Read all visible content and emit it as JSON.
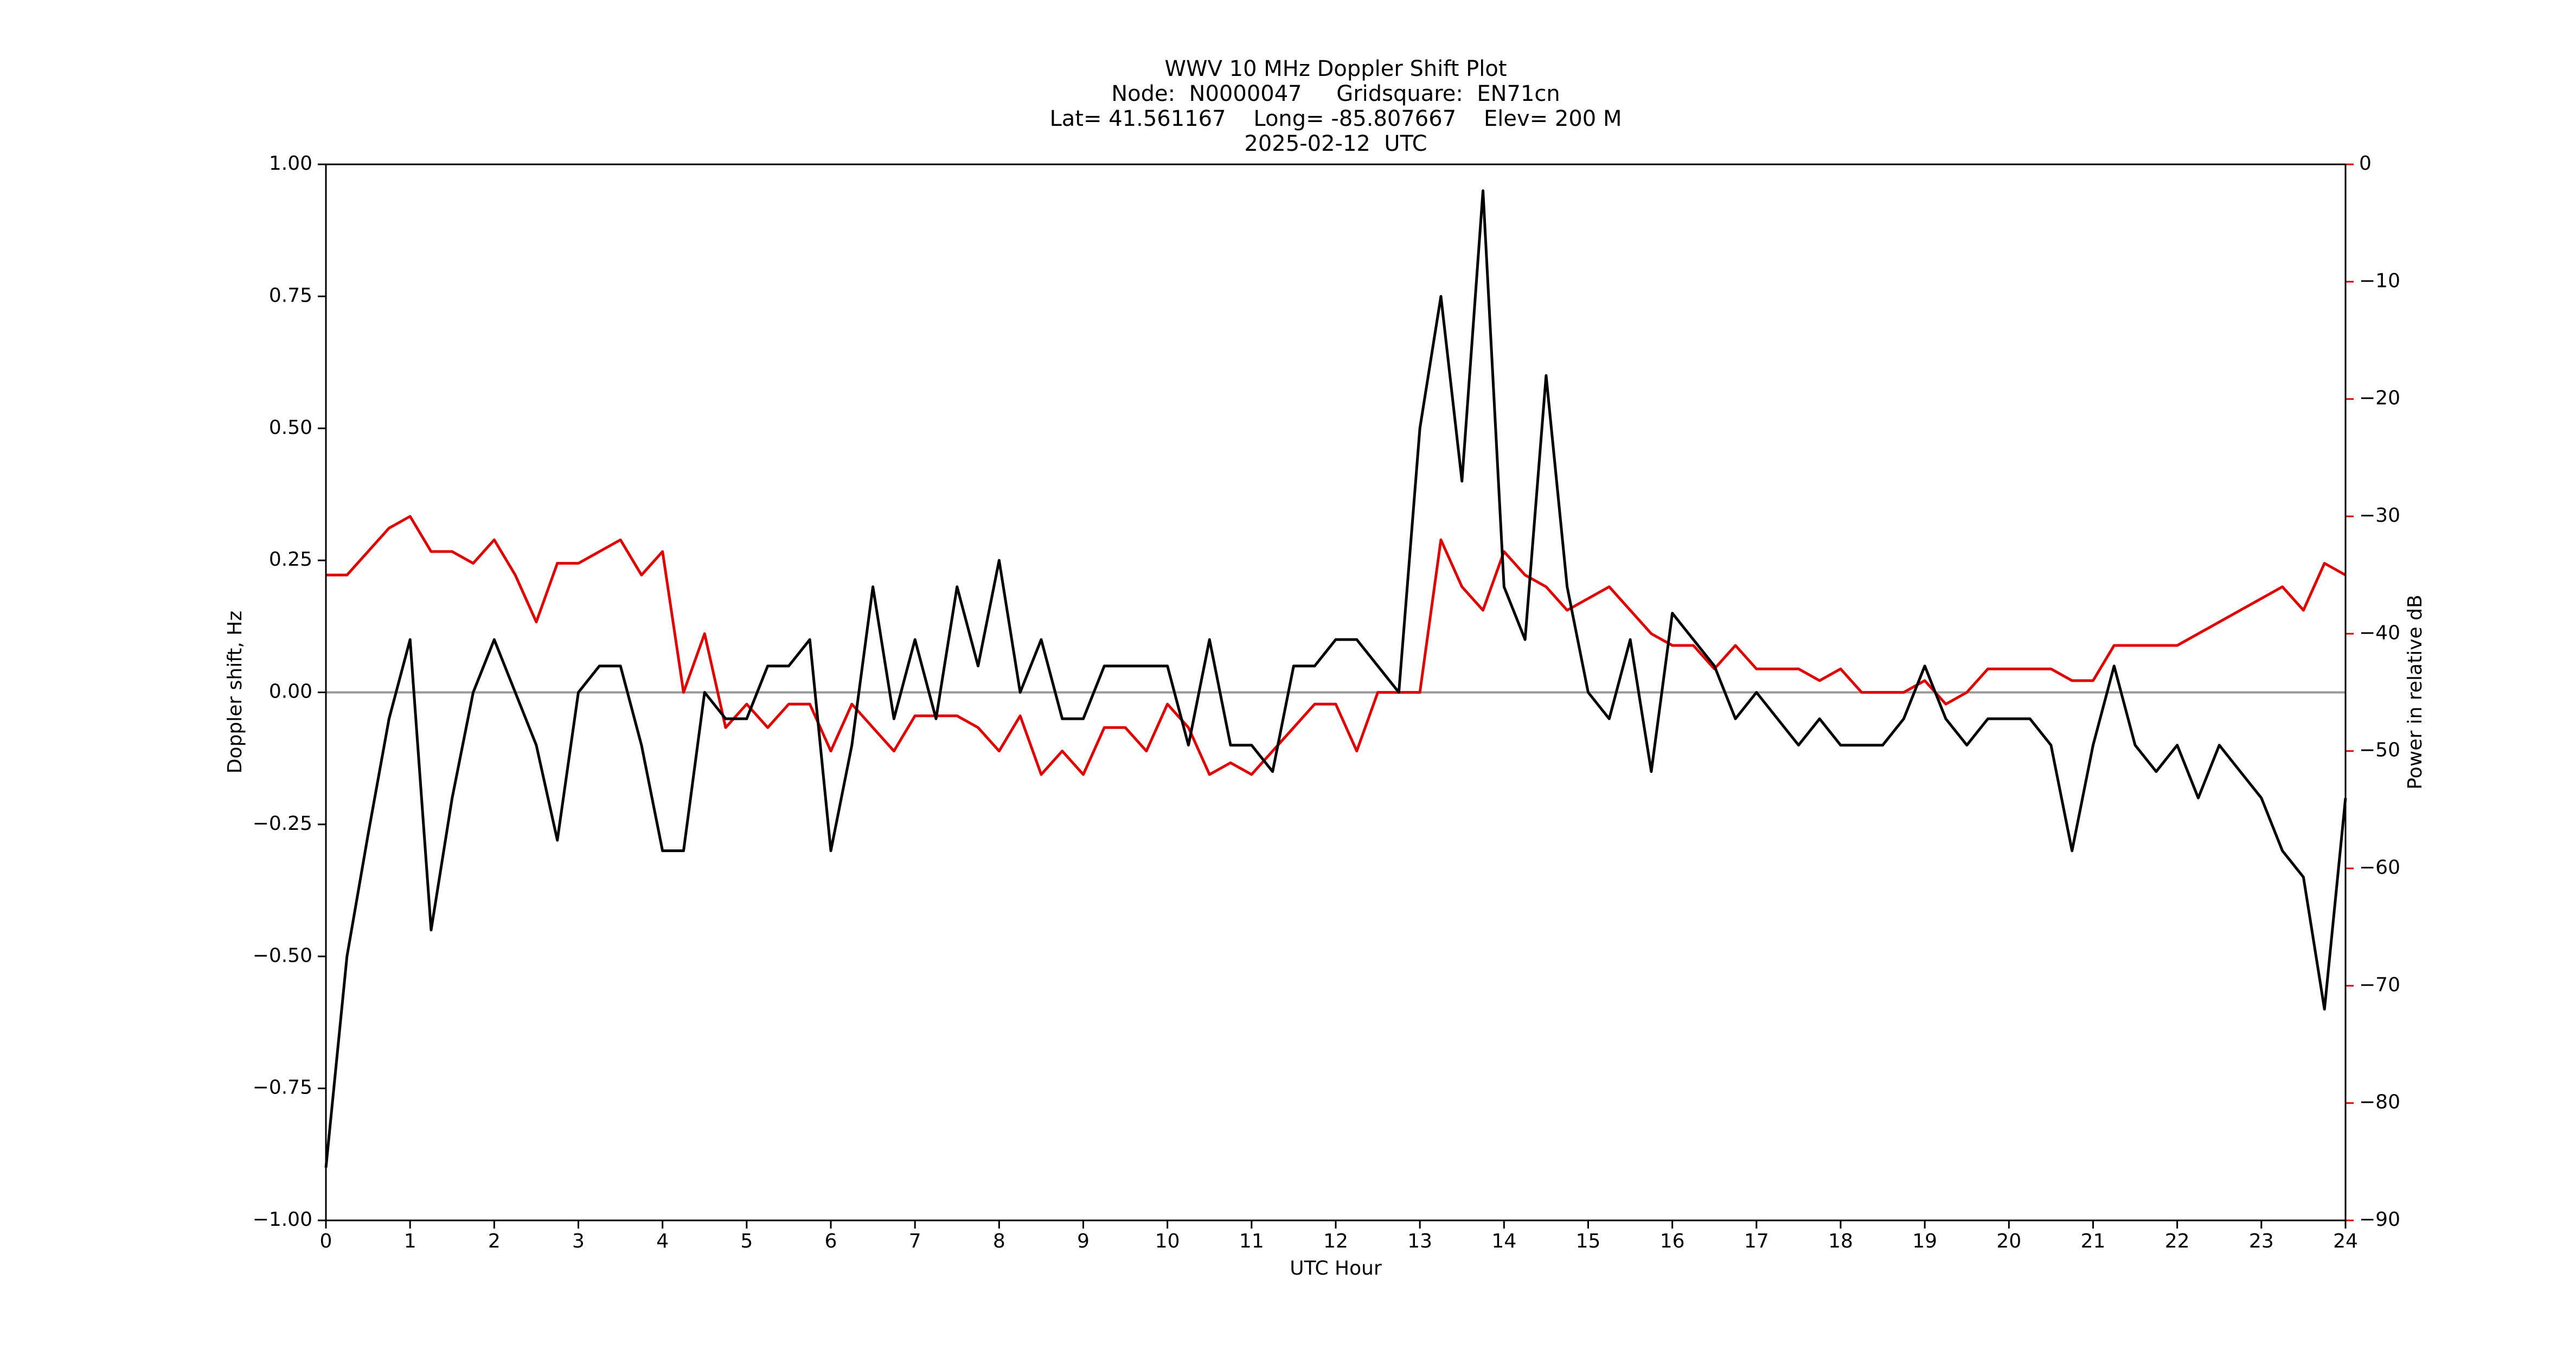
{
  "chart_data": {
    "type": "line",
    "title": "WWV 10 MHz Doppler Shift Plot",
    "subtitle": [
      "Node:  N0000047     Gridsquare:  EN71cn",
      "Lat= 41.561167    Long= -85.807667    Elev= 200 M",
      "2025-02-12  UTC"
    ],
    "xlabel": "UTC Hour",
    "ylabel": "Doppler shift, Hz",
    "y2label": "Power in relative dB",
    "xlim": [
      0,
      24
    ],
    "xticks": [
      0,
      1,
      2,
      3,
      4,
      5,
      6,
      7,
      8,
      9,
      10,
      11,
      12,
      13,
      14,
      15,
      16,
      17,
      18,
      19,
      20,
      21,
      22,
      23,
      24
    ],
    "ylim": [
      -1,
      1
    ],
    "yticks": [
      {
        "value": -1,
        "label": "−1.00"
      },
      {
        "value": -0.75,
        "label": "−0.75"
      },
      {
        "value": -0.5,
        "label": "−0.50"
      },
      {
        "value": -0.25,
        "label": "−0.25"
      },
      {
        "value": 0,
        "label": "0.00"
      },
      {
        "value": 0.25,
        "label": "0.25"
      },
      {
        "value": 0.5,
        "label": "0.50"
      },
      {
        "value": 0.75,
        "label": "0.75"
      },
      {
        "value": 1,
        "label": "1.00"
      }
    ],
    "y2lim": [
      -90,
      0
    ],
    "y2ticks": [
      {
        "value": -90,
        "label": "−90"
      },
      {
        "value": -80,
        "label": "−80"
      },
      {
        "value": -70,
        "label": "−70"
      },
      {
        "value": -60,
        "label": "−60"
      },
      {
        "value": -50,
        "label": "−50"
      },
      {
        "value": -40,
        "label": "−40"
      },
      {
        "value": -30,
        "label": "−30"
      },
      {
        "value": -20,
        "label": "−20"
      },
      {
        "value": -10,
        "label": "−10"
      },
      0
    ],
    "y2color": "#e00000",
    "x": [
      0,
      0.25,
      0.5,
      0.75,
      1,
      1.25,
      1.5,
      1.75,
      2,
      2.25,
      2.5,
      2.75,
      3,
      3.25,
      3.5,
      3.75,
      4,
      4.25,
      4.5,
      4.75,
      5,
      5.25,
      5.5,
      5.75,
      6,
      6.25,
      6.5,
      6.75,
      7,
      7.25,
      7.5,
      7.75,
      8,
      8.25,
      8.5,
      8.75,
      9,
      9.25,
      9.5,
      9.75,
      10,
      10.25,
      10.5,
      10.75,
      11,
      11.25,
      11.5,
      11.75,
      12,
      12.25,
      12.5,
      12.75,
      13,
      13.25,
      13.5,
      13.75,
      14,
      14.25,
      14.5,
      14.75,
      15,
      15.25,
      15.5,
      15.75,
      16,
      16.25,
      16.5,
      16.75,
      17,
      17.25,
      17.5,
      17.75,
      18,
      18.25,
      18.5,
      18.75,
      19,
      19.25,
      19.5,
      19.75,
      20,
      20.25,
      20.5,
      20.75,
      21,
      21.25,
      21.5,
      21.75,
      22,
      22.25,
      22.5,
      22.75,
      23,
      23.25,
      23.5,
      23.75,
      24
    ],
    "series": [
      {
        "color": "#000000",
        "values": [
          -0.9,
          -0.5,
          -0.27,
          -0.05,
          0.1,
          -0.45,
          -0.2,
          0.0,
          0.1,
          0.0,
          -0.1,
          -0.28,
          0.0,
          0.05,
          0.05,
          -0.1,
          -0.3,
          -0.3,
          0.0,
          -0.05,
          -0.05,
          0.05,
          0.05,
          0.1,
          -0.3,
          -0.1,
          0.2,
          -0.05,
          0.1,
          -0.05,
          0.2,
          0.05,
          0.25,
          0.0,
          0.1,
          -0.05,
          -0.05,
          0.05,
          0.05,
          0.05,
          0.05,
          -0.1,
          0.1,
          -0.1,
          -0.1,
          -0.15,
          0.05,
          0.05,
          0.1,
          0.1,
          0.05,
          0.0,
          0.5,
          0.75,
          0.4,
          0.95,
          0.2,
          0.1,
          0.6,
          0.2,
          0.0,
          -0.05,
          0.1,
          -0.15,
          0.15,
          0.1,
          0.05,
          -0.05,
          0.0,
          -0.05,
          -0.1,
          -0.05,
          -0.1,
          -0.1,
          -0.1,
          -0.05,
          0.05,
          -0.05,
          -0.1,
          -0.05,
          -0.05,
          -0.05,
          -0.1,
          -0.3,
          -0.1,
          0.05,
          -0.1,
          -0.15,
          -0.1,
          -0.2,
          -0.1,
          -0.15,
          -0.2,
          -0.3,
          -0.35,
          -0.6,
          -0.2
        ]
      },
      {
        "color": "#e00000",
        "axis": "y2",
        "values": [
          -35,
          -35,
          -33,
          -31,
          -30,
          -33,
          -33,
          -34,
          -32,
          -35,
          -39,
          -34,
          -34,
          -33,
          -32,
          -35,
          -33,
          -45,
          -40,
          -48,
          -46,
          -48,
          -46,
          -46,
          -50,
          -46,
          -48,
          -50,
          -47,
          -47,
          -47,
          -48,
          -50,
          -47,
          -52,
          -50,
          -52,
          -48,
          -48,
          -50,
          -46,
          -48,
          -52,
          -51,
          -52,
          -50,
          -48,
          -46,
          -46,
          -50,
          -45,
          -45,
          -45,
          -32,
          -36,
          -38,
          -33,
          -35,
          -36,
          -38,
          -37,
          -36,
          -38,
          -40,
          -41,
          -41,
          -43,
          -41,
          -43,
          -43,
          -43,
          -44,
          -43,
          -45,
          -45,
          -45,
          -44,
          -46,
          -45,
          -43,
          -43,
          -43,
          -43,
          -44,
          -44,
          -41,
          -41,
          -41,
          -41,
          -40,
          -39,
          -38,
          -37,
          -36,
          -38,
          -34,
          -35
        ]
      }
    ]
  }
}
